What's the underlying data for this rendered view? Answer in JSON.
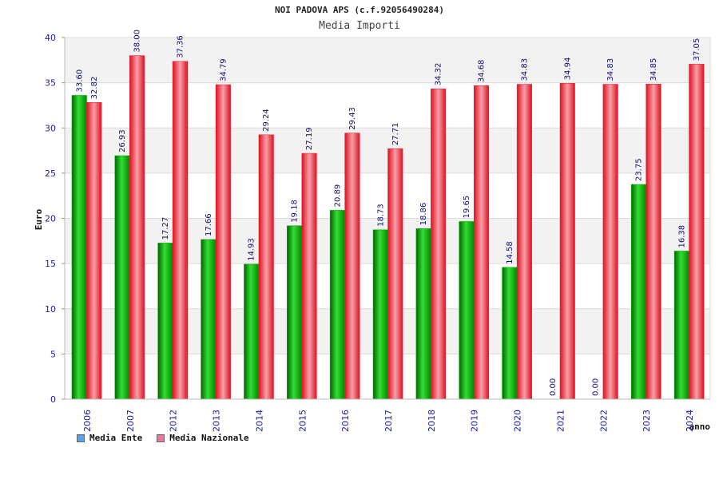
{
  "title": "NOI PADOVA APS (c.f.92056490284)",
  "subtitle": "Media Importi",
  "legend_colors": {
    "ente": "#5aa0e6",
    "nazionale": "#e07aa0"
  },
  "bar_colors": {
    "ente": "#00b000",
    "nazionale": "#ee2233"
  },
  "chart_data": {
    "type": "bar",
    "title": "Media Importi",
    "xlabel": "anno",
    "ylabel": "Euro",
    "ylim": [
      0,
      40
    ],
    "yticks": [
      0,
      5,
      10,
      15,
      20,
      25,
      30,
      35,
      40
    ],
    "categories": [
      "2006",
      "2007",
      "2012",
      "2013",
      "2014",
      "2015",
      "2016",
      "2017",
      "2018",
      "2019",
      "2020",
      "2021",
      "2022",
      "2023",
      "2024"
    ],
    "series": [
      {
        "name": "Media Ente",
        "values": [
          33.6,
          26.93,
          17.27,
          17.66,
          14.93,
          19.18,
          20.89,
          18.73,
          18.86,
          19.65,
          14.58,
          0.0,
          0.0,
          23.75,
          16.38
        ],
        "labels": [
          "33.60",
          "26.93",
          "17.27",
          "17.66",
          "14.93",
          "19.18",
          "20.89",
          "18.73",
          "18.86",
          "19.65",
          "14.58",
          "0.00",
          "0.00",
          "23.75",
          "16.38"
        ]
      },
      {
        "name": "Media Nazionale",
        "values": [
          32.82,
          38.0,
          37.36,
          34.79,
          29.24,
          27.19,
          29.43,
          27.71,
          34.32,
          34.68,
          34.83,
          34.94,
          34.83,
          34.85,
          37.05
        ],
        "labels": [
          "32.82",
          "38.00",
          "37.36",
          "34.79",
          "29.24",
          "27.19",
          "29.43",
          "27.71",
          "34.32",
          "34.68",
          "34.83",
          "34.94",
          "34.83",
          "34.85",
          "37.05"
        ]
      }
    ],
    "grid": true,
    "legend_position": "bottom-left"
  }
}
